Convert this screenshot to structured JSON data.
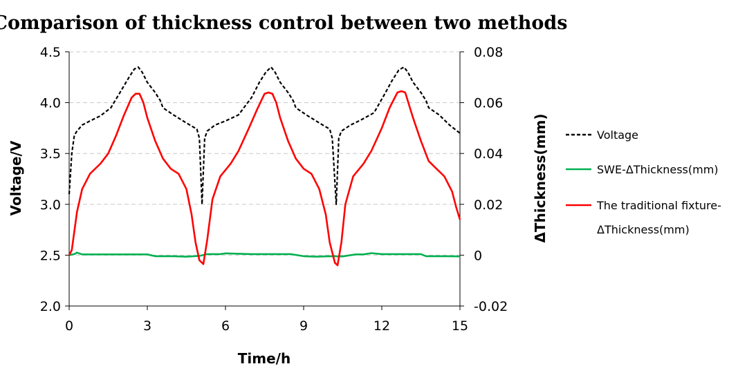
{
  "chart_data": {
    "type": "line",
    "title": "Comparison of thickness control between two methods",
    "xlabel": "Time/h",
    "ylabel": "Voltage/V",
    "y2label": "ΔThickness(mm)",
    "xlim": [
      0,
      15
    ],
    "ylim": [
      2.0,
      4.5
    ],
    "y2lim": [
      -0.02,
      0.08
    ],
    "xticks": [
      "0",
      "3",
      "6",
      "9",
      "12",
      "15"
    ],
    "yticks": [
      "2.0",
      "2.5",
      "3.0",
      "3.5",
      "4.0",
      "4.5"
    ],
    "y2ticks": [
      "-0.02",
      "0",
      "0.02",
      "0.04",
      "0.06",
      "0.08"
    ],
    "grid": "horizontal-dashed",
    "legend_position": "right",
    "colors": {
      "voltage": "#000000",
      "swe": "#00b050",
      "traditional": "#ff0000"
    },
    "series": [
      {
        "name": "Voltage",
        "axis": "left",
        "style": "dashed",
        "x": [
          0,
          0.1,
          0.2,
          0.3,
          0.5,
          0.8,
          1.2,
          1.6,
          2.0,
          2.3,
          2.5,
          2.65,
          2.8,
          3.0,
          3.3,
          3.5,
          3.6,
          4.0,
          4.5,
          4.9,
          5.0,
          5.1,
          5.2,
          5.3,
          5.6,
          6.0,
          6.5,
          7.0,
          7.3,
          7.55,
          7.75,
          7.9,
          8.1,
          8.4,
          8.6,
          8.7,
          9.1,
          9.6,
          10.0,
          10.1,
          10.25,
          10.35,
          10.45,
          10.8,
          11.2,
          11.7,
          12.1,
          12.4,
          12.65,
          12.85,
          13.0,
          13.2,
          13.5,
          13.7,
          13.8,
          14.2,
          14.6,
          15.0
        ],
        "values": [
          3.1,
          3.5,
          3.68,
          3.72,
          3.78,
          3.82,
          3.87,
          3.95,
          4.12,
          4.25,
          4.33,
          4.35,
          4.3,
          4.2,
          4.1,
          4.02,
          3.95,
          3.88,
          3.8,
          3.74,
          3.65,
          3.0,
          3.65,
          3.72,
          3.78,
          3.82,
          3.88,
          4.05,
          4.2,
          4.3,
          4.35,
          4.3,
          4.2,
          4.1,
          4.02,
          3.95,
          3.88,
          3.8,
          3.74,
          3.65,
          3.0,
          3.65,
          3.72,
          3.78,
          3.83,
          3.9,
          4.08,
          4.22,
          4.32,
          4.35,
          4.3,
          4.2,
          4.1,
          4.02,
          3.95,
          3.88,
          3.78,
          3.7
        ]
      },
      {
        "name": "SWE-ΔThickness(mm)",
        "axis": "right",
        "style": "solid",
        "x": [
          0,
          0.2,
          0.3,
          0.5,
          1.5,
          2.5,
          3.0,
          3.3,
          4.0,
          4.5,
          5.0,
          5.3,
          5.8,
          6.0,
          7.0,
          8.0,
          8.5,
          9.0,
          9.5,
          10.0,
          10.5,
          11.0,
          11.3,
          11.6,
          12.0,
          13.0,
          13.5,
          13.7,
          14.5,
          15.0
        ],
        "values": [
          0,
          0.0004,
          0.001,
          0.0003,
          0.0003,
          0.0003,
          0.0003,
          -0.0004,
          -0.0004,
          -0.0006,
          -0.0003,
          0.0004,
          0.0004,
          0.0007,
          0.0004,
          0.0004,
          0.0004,
          -0.0004,
          -0.0006,
          -0.0004,
          -0.0005,
          0.0003,
          0.0003,
          0.0008,
          0.0004,
          0.0004,
          0.0004,
          -0.0004,
          -0.0004,
          -0.0005
        ]
      },
      {
        "name": "The traditional fixture-ΔThickness(mm)",
        "axis": "right",
        "style": "solid",
        "x": [
          0,
          0.1,
          0.3,
          0.5,
          0.8,
          1.2,
          1.5,
          1.8,
          2.1,
          2.4,
          2.55,
          2.7,
          2.85,
          3.0,
          3.3,
          3.6,
          3.9,
          4.2,
          4.5,
          4.7,
          4.85,
          5.0,
          5.15,
          5.3,
          5.5,
          5.8,
          6.2,
          6.5,
          6.9,
          7.2,
          7.5,
          7.65,
          7.8,
          7.95,
          8.1,
          8.4,
          8.7,
          9.0,
          9.3,
          9.6,
          9.85,
          10.0,
          10.2,
          10.3,
          10.45,
          10.6,
          10.9,
          11.3,
          11.6,
          12.0,
          12.3,
          12.6,
          12.75,
          12.9,
          13.05,
          13.2,
          13.5,
          13.8,
          14.1,
          14.4,
          14.7,
          14.85,
          15.0
        ],
        "values": [
          0,
          0.002,
          0.017,
          0.026,
          0.032,
          0.036,
          0.04,
          0.047,
          0.055,
          0.062,
          0.0635,
          0.0635,
          0.06,
          0.054,
          0.045,
          0.038,
          0.034,
          0.032,
          0.026,
          0.016,
          0.005,
          -0.002,
          -0.0035,
          0.006,
          0.022,
          0.031,
          0.036,
          0.041,
          0.05,
          0.057,
          0.0635,
          0.064,
          0.0635,
          0.06,
          0.054,
          0.045,
          0.038,
          0.034,
          0.032,
          0.026,
          0.016,
          0.005,
          -0.003,
          -0.004,
          0.005,
          0.02,
          0.031,
          0.036,
          0.041,
          0.05,
          0.058,
          0.064,
          0.0645,
          0.064,
          0.059,
          0.054,
          0.045,
          0.037,
          0.034,
          0.031,
          0.025,
          0.019,
          0.014
        ]
      }
    ]
  }
}
